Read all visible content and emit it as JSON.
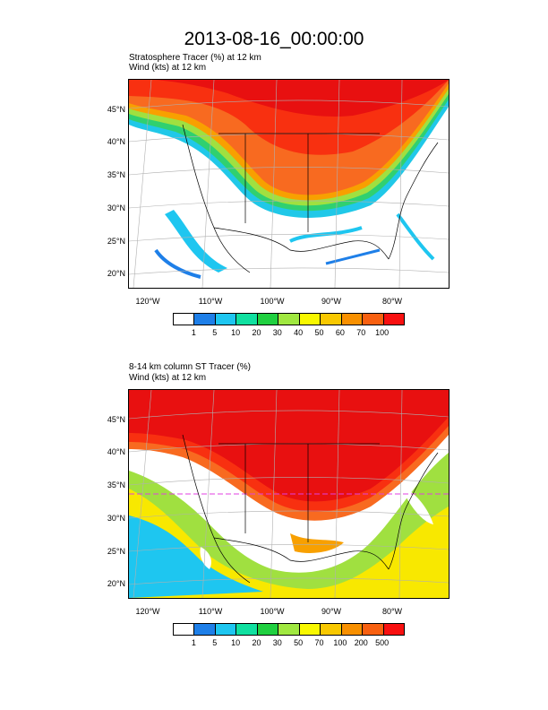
{
  "title": "2013-08-16_00:00:00",
  "panel1": {
    "line1": "Stratosphere Tracer   (%)     at   12 km",
    "line2": "Wind   (kts)     at   12 km",
    "colorbar_labels": [
      "1",
      "5",
      "10",
      "20",
      "30",
      "40",
      "50",
      "60",
      "70",
      "100"
    ],
    "colors": [
      "#ffffff",
      "#1e7fe8",
      "#1ec6f0",
      "#10e0a0",
      "#20d040",
      "#a0e840",
      "#f8f800",
      "#f8c800",
      "#f89000",
      "#f86010",
      "#f81010"
    ]
  },
  "panel2": {
    "line1": "8-14 km column ST Tracer   (%)",
    "line2": "Wind   (kts)     at   12 km",
    "colorbar_labels": [
      "1",
      "5",
      "10",
      "20",
      "30",
      "50",
      "70",
      "100",
      "200",
      "500"
    ],
    "colors": [
      "#ffffff",
      "#1e7fe8",
      "#1ec6f0",
      "#10e0a0",
      "#20d040",
      "#a0e840",
      "#f8f800",
      "#f8c800",
      "#f89000",
      "#f86010",
      "#f81010"
    ]
  },
  "lat_labels": [
    "45°N",
    "40°N",
    "35°N",
    "30°N",
    "25°N",
    "20°N"
  ],
  "lon_labels": [
    "120°W",
    "110°W",
    "100°W",
    "90°W",
    "80°W"
  ]
}
